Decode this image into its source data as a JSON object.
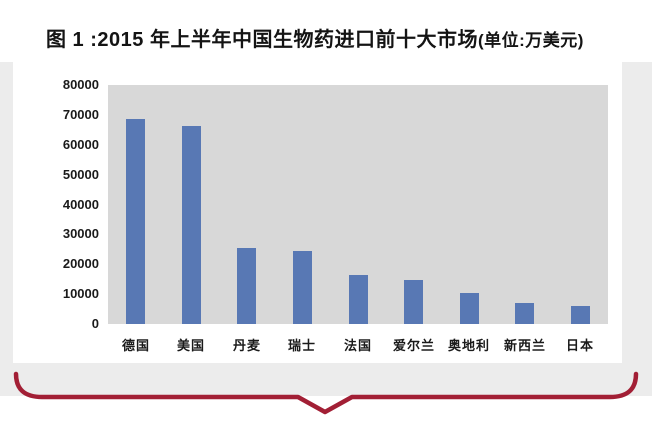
{
  "title": {
    "text": "图 1 :2015 年上半年中国生物药进口前十大市场",
    "unit_suffix": "(单位:万美元)"
  },
  "colors": {
    "bar": "#5878b4",
    "plot_background": "#d8d8d8",
    "panel_background": "#ffffff",
    "canvas_background": "#ececec",
    "brace": "#a21f35",
    "label_text": "#1a1a1a"
  },
  "chart_data": {
    "type": "bar",
    "title": "图 1 :2015 年上半年中国生物药进口前十大市场(单位:万美元)",
    "unit": "万美元",
    "categories": [
      "德国",
      "美国",
      "丹麦",
      "瑞士",
      "法国",
      "爱尔兰",
      "奥地利",
      "新西兰",
      "日本"
    ],
    "values": [
      68500,
      66300,
      25300,
      24400,
      16300,
      14700,
      10400,
      7000,
      6100
    ],
    "xlabel": "",
    "ylabel": "",
    "ylim": [
      0,
      80000
    ],
    "ytick_interval": 10000,
    "yticks": [
      0,
      10000,
      20000,
      30000,
      40000,
      50000,
      60000,
      70000,
      80000
    ],
    "grid": false,
    "legend": false,
    "bar_color": "#5878b4",
    "plot_background": "#d8d8d8"
  }
}
